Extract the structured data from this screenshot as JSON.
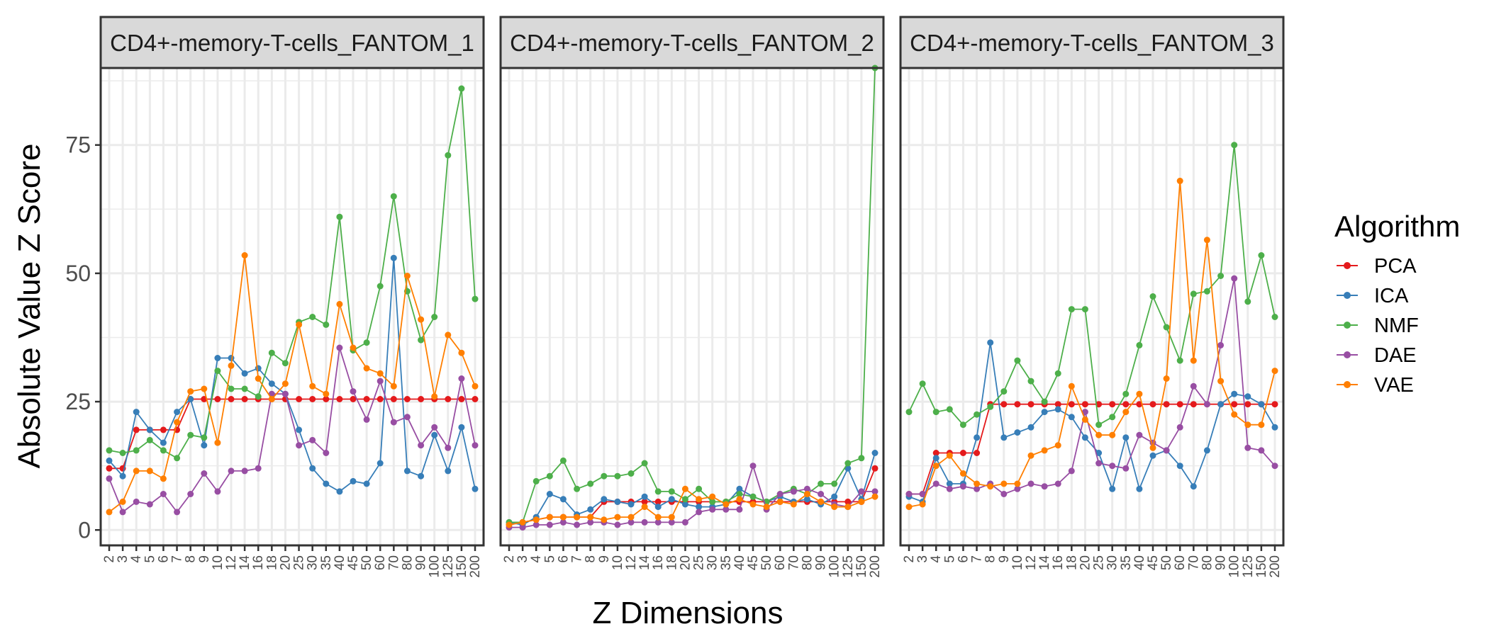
{
  "chart_data": {
    "type": "line",
    "xlabel": "Z Dimensions",
    "ylabel": "Absolute Value Z Score",
    "ylim": [
      -3,
      90
    ],
    "yticks": [
      0,
      25,
      50,
      75
    ],
    "categories": [
      "2",
      "3",
      "4",
      "5",
      "6",
      "7",
      "8",
      "9",
      "10",
      "12",
      "14",
      "16",
      "18",
      "20",
      "25",
      "30",
      "35",
      "40",
      "45",
      "50",
      "60",
      "70",
      "80",
      "90",
      "100",
      "125",
      "150",
      "200"
    ],
    "legend": {
      "title": "Algorithm",
      "position": "right"
    },
    "colors": {
      "PCA": "#e41a1c",
      "ICA": "#377eb8",
      "NMF": "#4daf4a",
      "DAE": "#984ea3",
      "VAE": "#ff7f00"
    },
    "facets": [
      {
        "label": "CD4+-memory-T-cells_FANTOM_1",
        "series": [
          {
            "name": "PCA",
            "values": [
              12,
              12,
              19.5,
              19.5,
              19.5,
              19.5,
              25.5,
              25.5,
              25.5,
              25.5,
              25.5,
              25.5,
              25.5,
              25.5,
              25.5,
              25.5,
              25.5,
              25.5,
              25.5,
              25.5,
              25.5,
              25.5,
              25.5,
              25.5,
              25.5,
              25.5,
              25.5,
              25.5
            ]
          },
          {
            "name": "ICA",
            "values": [
              13.5,
              10.5,
              23,
              19.5,
              17,
              23,
              25.5,
              16.5,
              33.5,
              33.5,
              30.5,
              31.5,
              28.5,
              26.5,
              19.5,
              12,
              9,
              7.5,
              9.5,
              9,
              13,
              53,
              11.5,
              10.5,
              18.5,
              11.5,
              20,
              8
            ]
          },
          {
            "name": "NMF",
            "values": [
              15.5,
              15,
              15.5,
              17.5,
              15.5,
              14,
              18.5,
              18,
              31,
              27.5,
              27.5,
              26,
              34.5,
              32.5,
              40.5,
              41.5,
              40,
              61,
              35,
              36.5,
              47.5,
              65,
              46.5,
              37,
              41.5,
              73,
              86,
              45
            ]
          },
          {
            "name": "DAE",
            "values": [
              10,
              3.5,
              5.5,
              5,
              7,
              3.5,
              7,
              11,
              7.5,
              11.5,
              11.5,
              12,
              26.5,
              26.5,
              16.5,
              17.5,
              15,
              35.5,
              27,
              21.5,
              29,
              21,
              22,
              16.5,
              20,
              16,
              29.5,
              16.5
            ]
          },
          {
            "name": "VAE",
            "values": [
              3.5,
              5.5,
              11.5,
              11.5,
              10,
              21,
              27,
              27.5,
              17,
              32,
              53.5,
              29.5,
              25.5,
              28.5,
              40,
              28,
              26.5,
              44,
              35.5,
              31.5,
              30.5,
              28,
              49.5,
              41,
              26,
              38,
              34.5,
              28
            ]
          }
        ]
      },
      {
        "label": "CD4+-memory-T-cells_FANTOM_2",
        "series": [
          {
            "name": "PCA",
            "values": [
              1,
              1.5,
              2,
              2.5,
              2.5,
              2.5,
              2.5,
              5.5,
              5.5,
              5.5,
              5.5,
              5.5,
              5.5,
              5.5,
              5.5,
              5.5,
              5.5,
              5.5,
              5.5,
              5.5,
              5.5,
              5.5,
              5.5,
              5.5,
              5.5,
              5.5,
              5.5,
              12
            ]
          },
          {
            "name": "ICA",
            "values": [
              1.5,
              1,
              2.5,
              7,
              6,
              3,
              4,
              6,
              5.5,
              5,
              6.5,
              4.5,
              6,
              5,
              4.5,
              4.5,
              5,
              8,
              6.5,
              5.5,
              6.5,
              5.5,
              6,
              5,
              6.5,
              12,
              6,
              15
            ]
          },
          {
            "name": "NMF",
            "values": [
              1.5,
              1.5,
              9.5,
              10.5,
              13.5,
              8,
              9,
              10.5,
              10.5,
              11,
              13,
              7.5,
              7.5,
              6,
              8,
              5.5,
              5.5,
              7,
              6.5,
              5.5,
              7,
              8,
              7,
              9,
              9,
              13,
              14,
              90
            ]
          },
          {
            "name": "DAE",
            "values": [
              0.5,
              0.5,
              1,
              1,
              1.5,
              1,
              1.5,
              1.5,
              1,
              1.5,
              1.5,
              1.5,
              1.5,
              1.5,
              3.5,
              4,
              4,
              4,
              12.5,
              4,
              7,
              7.5,
              8,
              7,
              5,
              4.5,
              7.5,
              7.5
            ]
          },
          {
            "name": "VAE",
            "values": [
              1,
              1.5,
              2,
              2.5,
              2.5,
              2.5,
              2.5,
              2,
              2.5,
              2.5,
              4.5,
              2.5,
              2.5,
              8,
              6,
              6.5,
              5,
              6,
              5,
              4.5,
              5.5,
              5,
              7,
              5.5,
              4.5,
              4.5,
              5.5,
              6.5
            ]
          }
        ]
      },
      {
        "label": "CD4+-memory-T-cells_FANTOM_3",
        "series": [
          {
            "name": "PCA",
            "values": [
              7,
              7,
              15,
              15,
              15,
              15,
              24.5,
              24.5,
              24.5,
              24.5,
              24.5,
              24.5,
              24.5,
              24.5,
              24.5,
              24.5,
              24.5,
              24.5,
              24.5,
              24.5,
              24.5,
              24.5,
              24.5,
              24.5,
              24.5,
              24.5,
              24.5,
              24.5
            ]
          },
          {
            "name": "ICA",
            "values": [
              6.5,
              5.5,
              14,
              9,
              9,
              18,
              36.5,
              18,
              19,
              20,
              23,
              23.5,
              22,
              18,
              15,
              8,
              18,
              8,
              14.5,
              15.5,
              12.5,
              8.5,
              15.5,
              24.5,
              26.5,
              26,
              24.5,
              20
            ]
          },
          {
            "name": "NMF",
            "values": [
              23,
              28.5,
              23,
              23.5,
              20.5,
              22.5,
              24,
              27,
              33,
              29,
              25,
              30.5,
              43,
              43,
              20.5,
              22,
              26.5,
              36,
              45.5,
              39.5,
              33,
              46,
              46.5,
              49.5,
              75,
              44.5,
              53.5,
              41.5
            ]
          },
          {
            "name": "DAE",
            "values": [
              7,
              7,
              9,
              8,
              8.5,
              8,
              9,
              7,
              8,
              9,
              8.5,
              9,
              11.5,
              23,
              13,
              12.5,
              12,
              18.5,
              17,
              15.5,
              20,
              28,
              24.5,
              36,
              49,
              16,
              15.5,
              12.5
            ]
          },
          {
            "name": "VAE",
            "values": [
              4.5,
              5,
              12.5,
              14.5,
              11,
              9,
              8.5,
              9,
              9,
              14.5,
              15.5,
              16.5,
              28,
              21.5,
              18.5,
              18.5,
              23,
              26.5,
              16,
              29.5,
              68,
              33,
              56.5,
              29,
              22.5,
              20.5,
              20.5,
              31
            ]
          }
        ]
      }
    ]
  }
}
